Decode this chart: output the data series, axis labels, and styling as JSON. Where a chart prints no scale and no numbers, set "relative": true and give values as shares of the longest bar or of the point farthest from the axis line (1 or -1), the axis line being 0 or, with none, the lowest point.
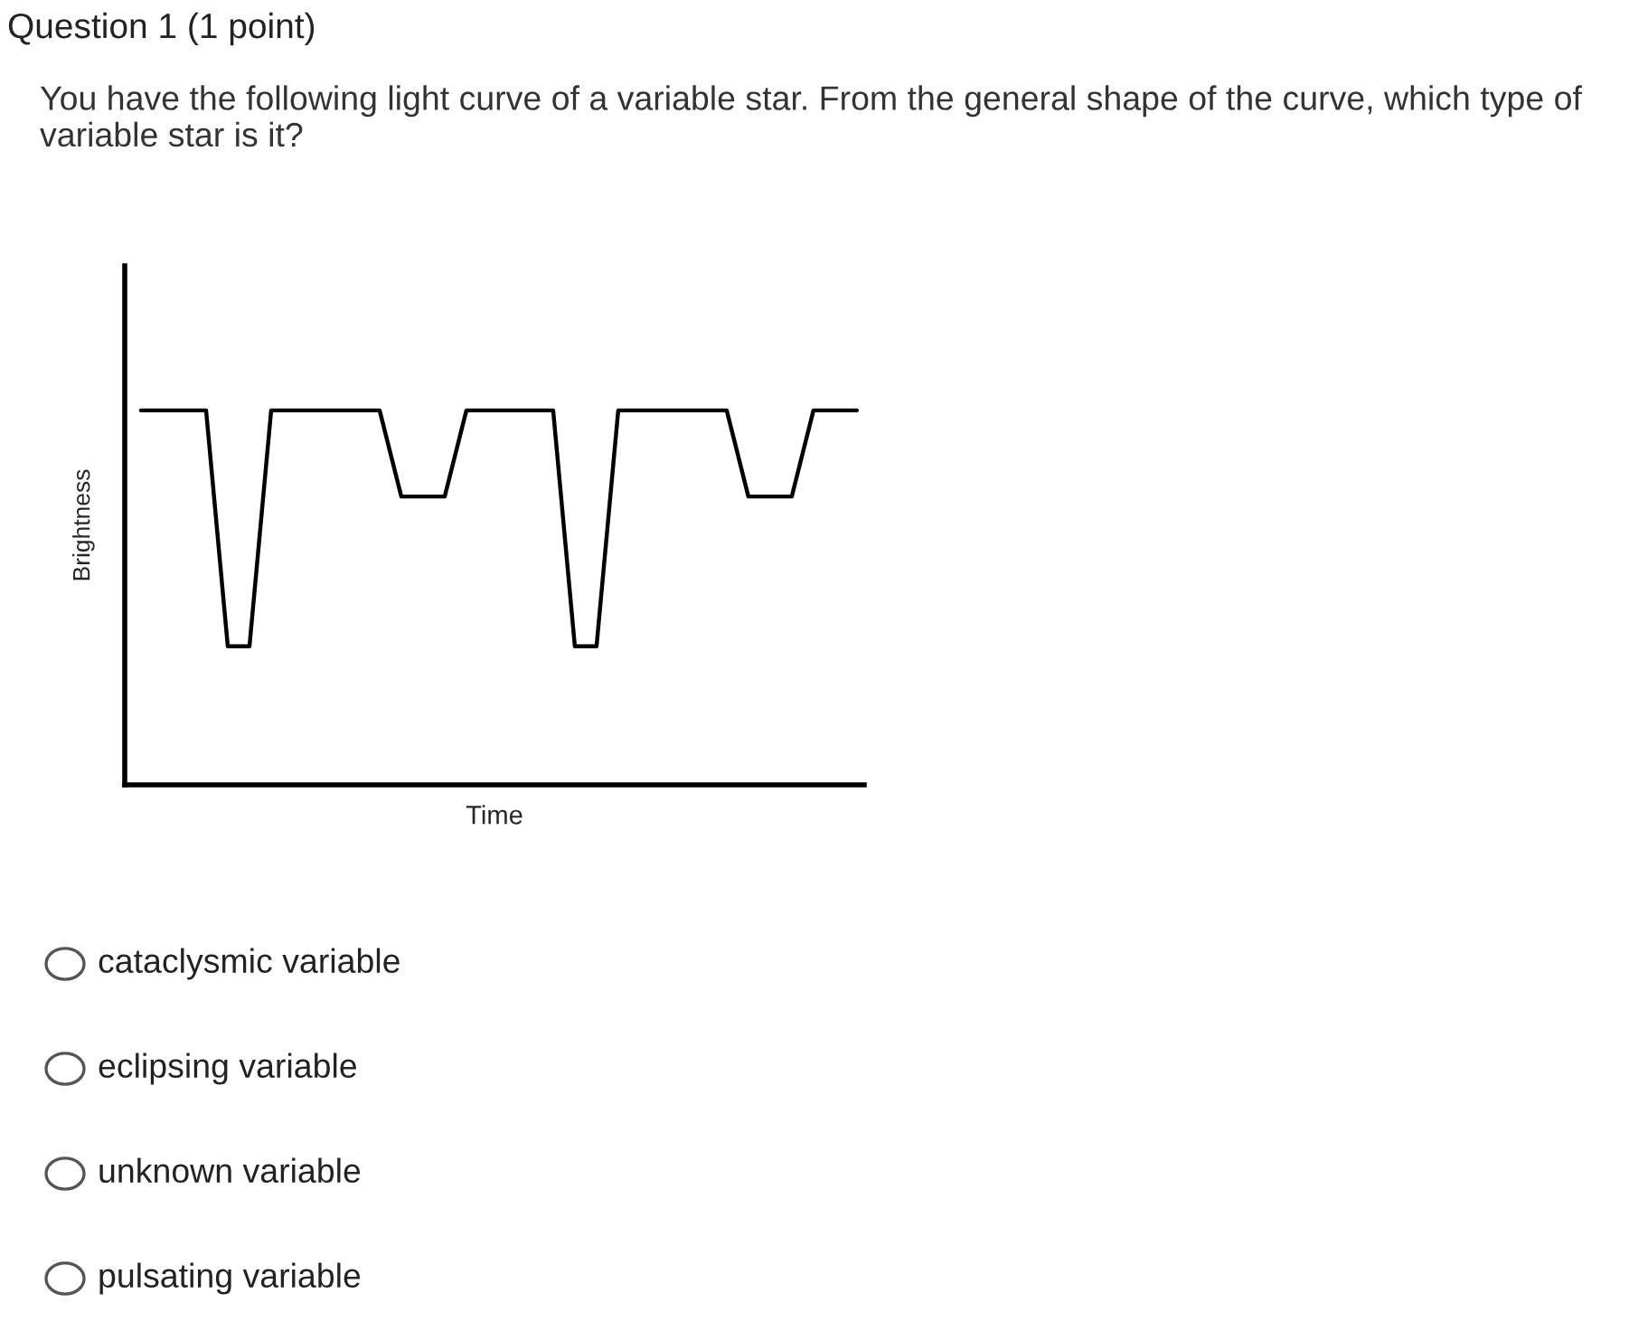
{
  "chart_data": {
    "type": "line",
    "relative": true,
    "title": "Question 1 (1 point)",
    "subtitle": "You have the following light curve of a variable star. From the general shape of the curve, which type of variable star is it?",
    "xlabel": "Time",
    "ylabel": "Brightness",
    "categories": [
      null,
      null,
      null,
      null,
      null,
      null,
      null,
      null,
      null,
      null,
      null,
      null,
      null,
      null,
      null,
      null,
      null,
      null,
      null,
      null,
      null,
      null,
      null,
      null,
      null,
      null,
      null,
      null,
      null,
      null,
      null,
      null,
      null,
      null
    ],
    "series": [
      {
        "color": "#000000",
        "values": [
          1,
          1,
          1,
          1,
          0.37,
          0.37,
          1,
          1,
          1,
          1,
          1,
          1,
          0.77,
          0.77,
          0.77,
          1,
          1,
          1,
          1,
          1,
          0.37,
          0.37,
          1,
          1,
          1,
          1,
          1,
          1,
          0.77,
          0.77,
          0.77,
          1,
          1,
          1
        ]
      }
    ],
    "annotations": [
      "cataclysmic variable",
      "eclipsing variable",
      "unknown variable",
      "pulsating variable"
    ],
    "grid": false,
    "legend": false,
    "marker": "none",
    "line_style": "solid",
    "tick_labels": false
  }
}
